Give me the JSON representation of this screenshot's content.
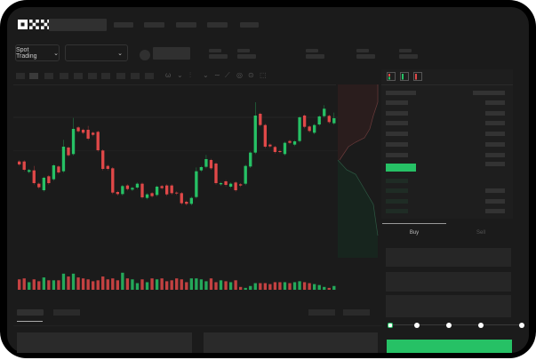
{
  "header": {
    "logo": "OKX",
    "nav_items": 5
  },
  "market_bar": {
    "mode_label": "Spot Trading",
    "mode_chevron": "chevron-down-icon",
    "pair_chevron": "chevron-down-icon"
  },
  "toolbar": {
    "icons": [
      "indicator-icon",
      "chevron-down-icon",
      "candle-type-icon",
      "chevron-down-icon",
      "line-icon",
      "ruler-icon",
      "camera-icon",
      "settings-icon",
      "fullscreen-icon"
    ]
  },
  "orderbook": {
    "view_icons": [
      "book-both-icon",
      "book-bids-icon",
      "book-asks-icon"
    ]
  },
  "trade": {
    "buy_tab": "Buy",
    "sell_tab": "Sell",
    "slider_value_percent": 0,
    "slider_marks": [
      0,
      25,
      50,
      75,
      100
    ]
  },
  "colors": {
    "up": "#26c165",
    "down": "#e04848",
    "accent": "#26c165",
    "background": "#1b1b1b"
  },
  "chart_data": {
    "type": "candlestick",
    "candles": [
      [
        160,
        150
      ],
      [
        160,
        132
      ],
      [
        125,
        131
      ],
      [
        130,
        87,
        145
      ],
      [
        85,
        73
      ],
      [
        63,
        105
      ],
      [
        110,
        87
      ],
      [
        100,
        147
      ],
      [
        143,
        123
      ],
      [
        127,
        210,
        233
      ],
      [
        207,
        181
      ],
      [
        185,
        270,
        307
      ],
      [
        275,
        262
      ],
      [
        267,
        257
      ],
      [
        267,
        237,
        280
      ],
      [
        257,
        250
      ],
      [
        260,
        198
      ],
      [
        197,
        135
      ],
      [
        145,
        135
      ],
      [
        137,
        55
      ],
      [
        57,
        50
      ],
      [
        50,
        77
      ],
      [
        79,
        67
      ],
      [
        65,
        71
      ],
      [
        72,
        85
      ],
      [
        85,
        39
      ],
      [
        37,
        49
      ],
      [
        53,
        43
      ],
      [
        47,
        75
      ],
      [
        77,
        70
      ],
      [
        79,
        49
      ],
      [
        79,
        53
      ],
      [
        55,
        52
      ],
      [
        53,
        19
      ],
      [
        24,
        17
      ],
      [
        17,
        37
      ],
      [
        40,
        127,
        140
      ],
      [
        130,
        141
      ],
      [
        142,
        168,
        182
      ],
      [
        165,
        137
      ],
      [
        153,
        87
      ],
      [
        83,
        87
      ],
      [
        93,
        81
      ],
      [
        75,
        85
      ],
      [
        89,
        63
      ],
      [
        83,
        79
      ],
      [
        85,
        145
      ],
      [
        143,
        190
      ],
      [
        190,
        315,
        360
      ],
      [
        321,
        283
      ],
      [
        283,
        210
      ],
      [
        217,
        211
      ],
      [
        209,
        192
      ],
      [
        195,
        193
      ],
      [
        185,
        223
      ],
      [
        229,
        223
      ],
      [
        217,
        228
      ],
      [
        229,
        309
      ],
      [
        315,
        277
      ],
      [
        278,
        263
      ],
      [
        257,
        283
      ],
      [
        285,
        312
      ],
      [
        313,
        338,
        350
      ],
      [
        314,
        293
      ],
      [
        289,
        306,
        325
      ]
    ],
    "volumes": [
      11,
      12,
      8,
      11,
      9,
      13,
      10,
      10,
      10,
      17,
      14,
      17,
      13,
      12,
      11,
      9,
      10,
      14,
      11,
      12,
      10,
      18,
      12,
      11,
      7,
      11,
      8,
      12,
      11,
      12,
      9,
      10,
      12,
      11,
      8,
      12,
      12,
      11,
      9,
      12,
      8,
      10,
      9,
      8,
      10,
      3,
      2,
      4,
      7,
      7,
      7,
      6,
      8,
      8,
      8,
      7,
      8,
      9,
      8,
      7,
      6,
      5,
      3,
      2,
      4
    ]
  }
}
